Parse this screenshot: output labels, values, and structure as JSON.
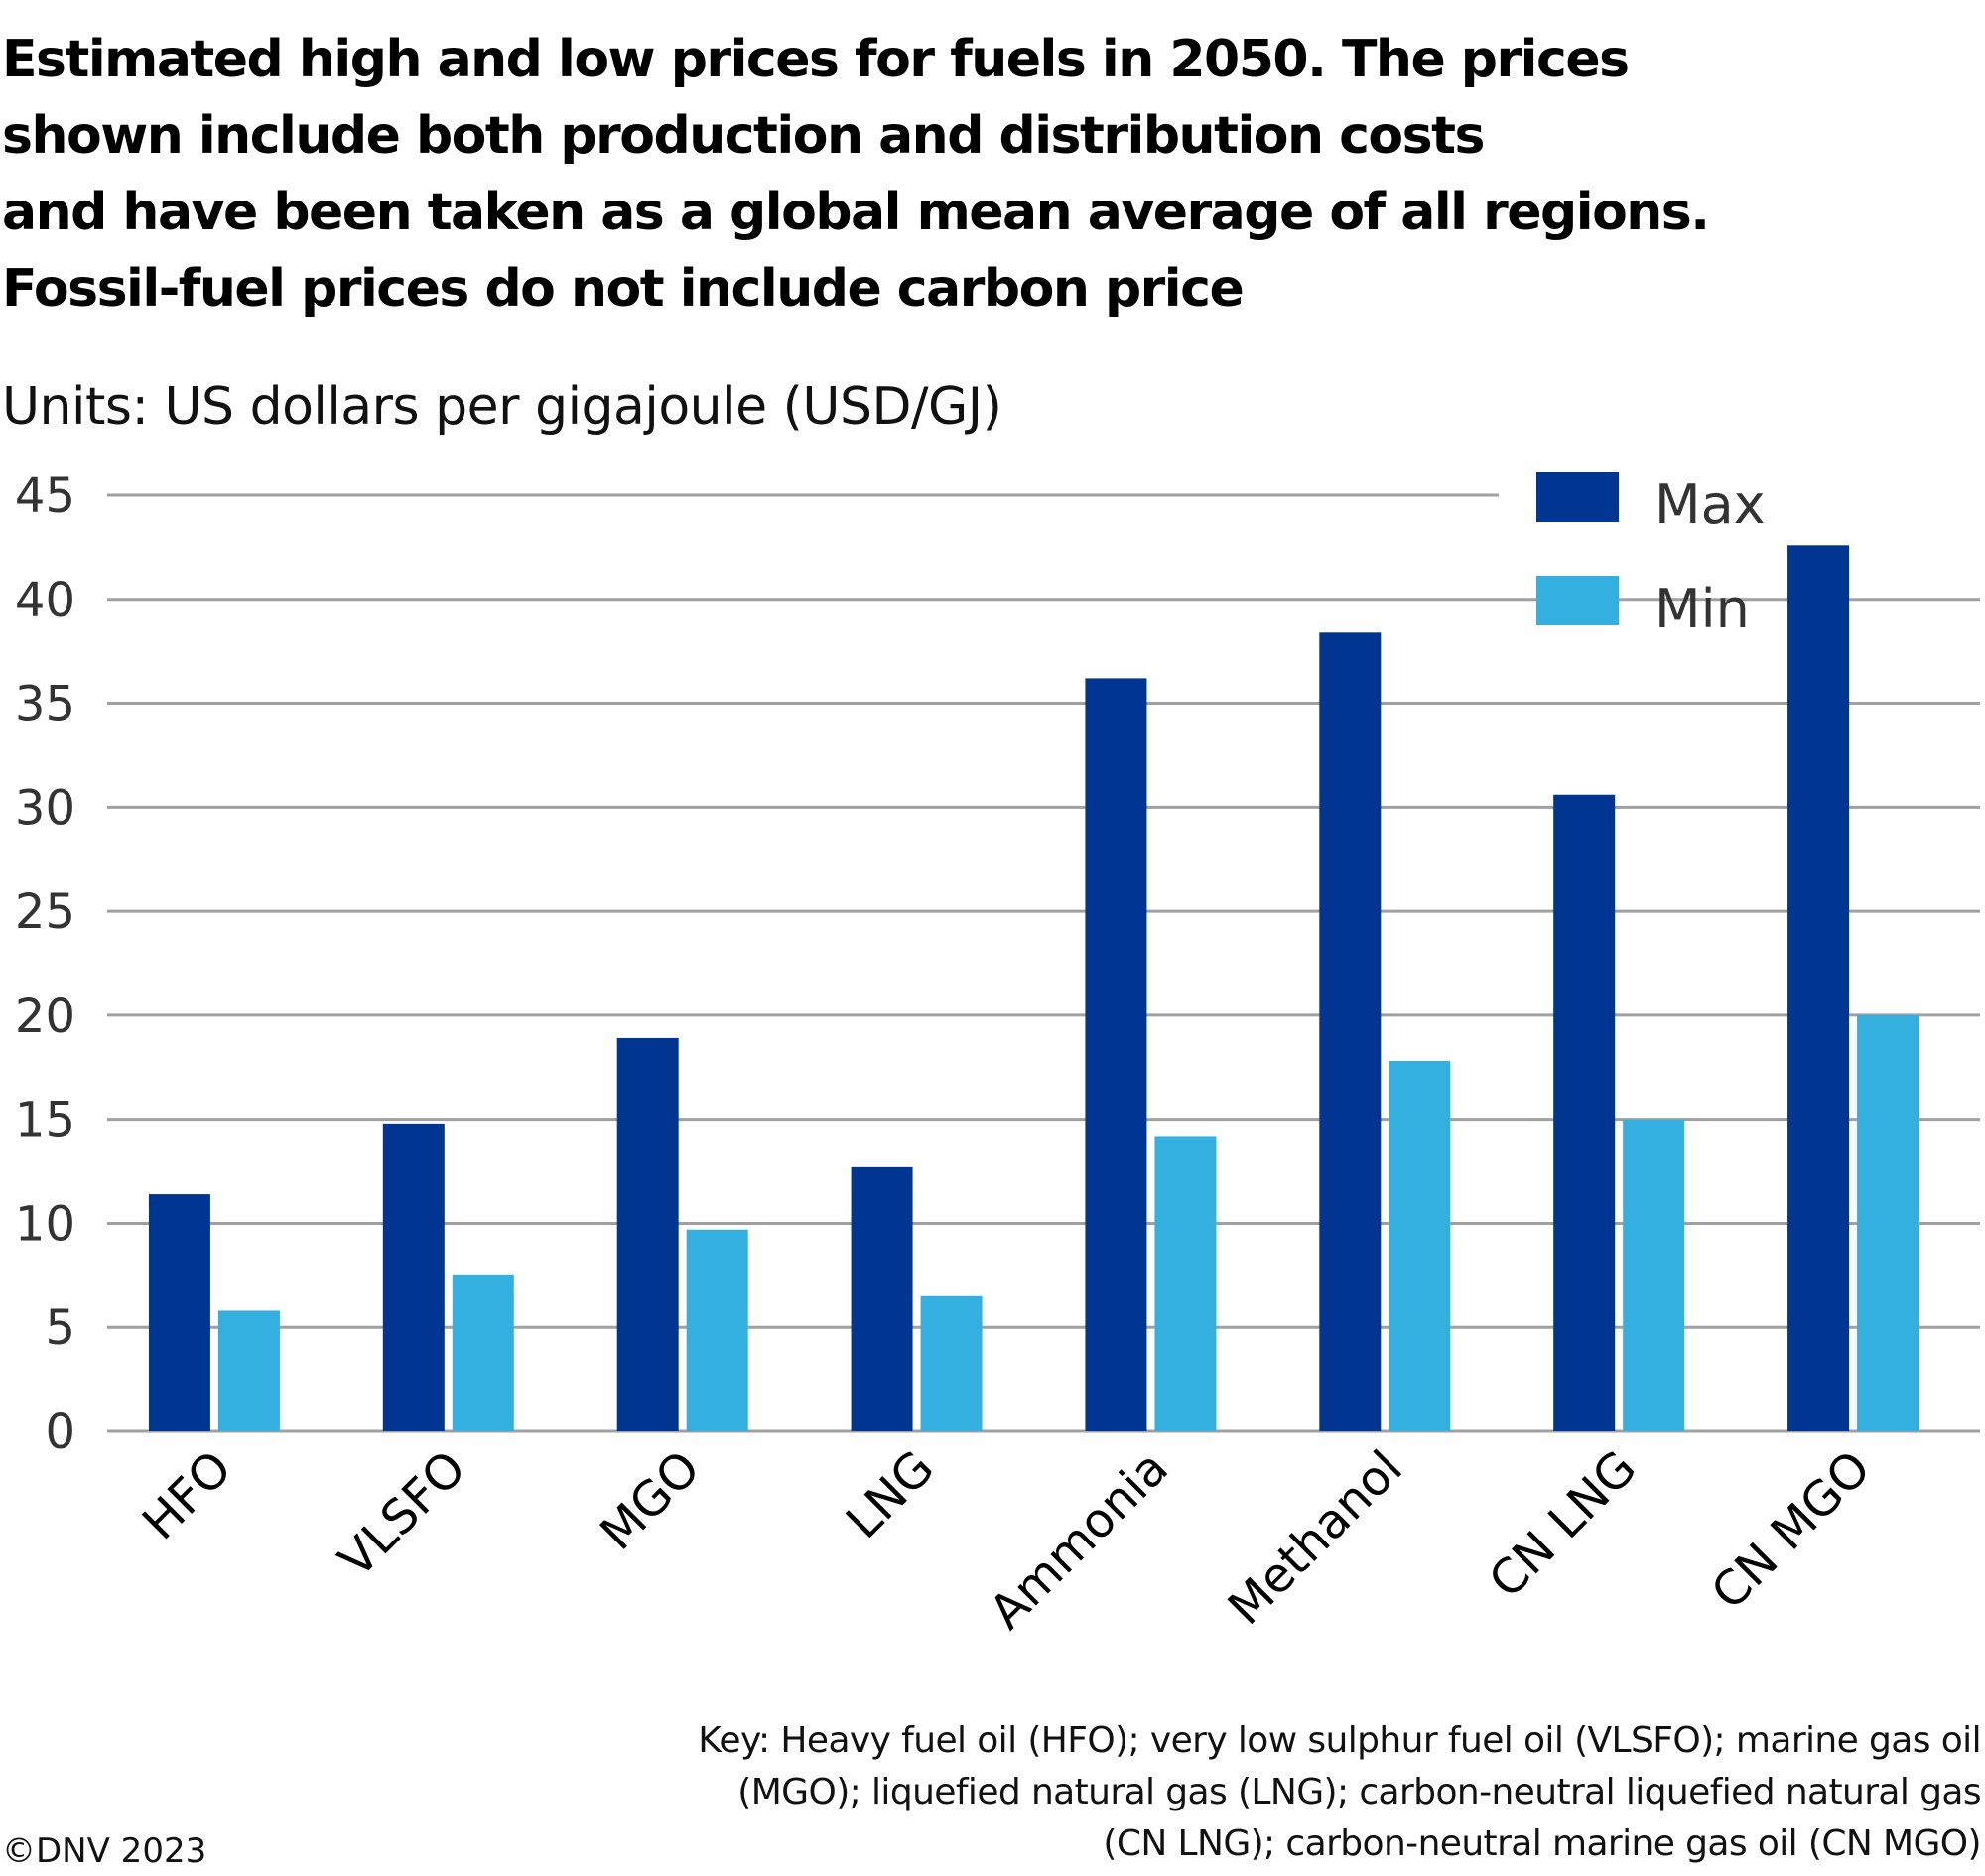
{
  "title_lines": [
    "Estimated high and low prices for fuels in 2050. The prices",
    "shown include both production and distribution costs",
    "and have been taken as a global mean average of all regions.",
    "Fossil-fuel prices do not include carbon price"
  ],
  "units": "Units: US dollars per gigajoule (USD/GJ)",
  "key_lines": [
    "Key: Heavy fuel oil (HFO); very low sulphur fuel oil (VLSFO); marine gas oil",
    "(MGO); liquefied natural gas (LNG); carbon-neutral liquefied natural gas",
    "(CN LNG); carbon-neutral marine gas oil (CN MGO)"
  ],
  "copyright": "©DNV 2023",
  "colors": {
    "max": "#003591",
    "min": "#34b0e0",
    "grid": "#a0a0a0"
  },
  "chart_data": {
    "type": "bar",
    "title": "Estimated high and low prices for fuels in 2050. The prices shown include both production and distribution costs and have been taken as a global mean average of all regions. Fossil-fuel prices do not include carbon price",
    "xlabel": "",
    "ylabel": "Units: US dollars per gigajoule (USD/GJ)",
    "categories": [
      "HFO",
      "VLSFO",
      "MGO",
      "LNG",
      "Ammonia",
      "Methanol",
      "CN LNG",
      "CN MGO"
    ],
    "series": [
      {
        "name": "Max",
        "values": [
          11.4,
          14.8,
          18.9,
          12.7,
          36.2,
          38.4,
          30.6,
          42.6
        ]
      },
      {
        "name": "Min",
        "values": [
          5.8,
          7.5,
          9.7,
          6.5,
          14.2,
          17.8,
          15.0,
          20.0
        ]
      }
    ],
    "ylim": [
      0,
      45
    ],
    "yticks": [
      0,
      5,
      10,
      15,
      20,
      25,
      30,
      35,
      40,
      45
    ],
    "grid": true,
    "legend": "top-right"
  }
}
